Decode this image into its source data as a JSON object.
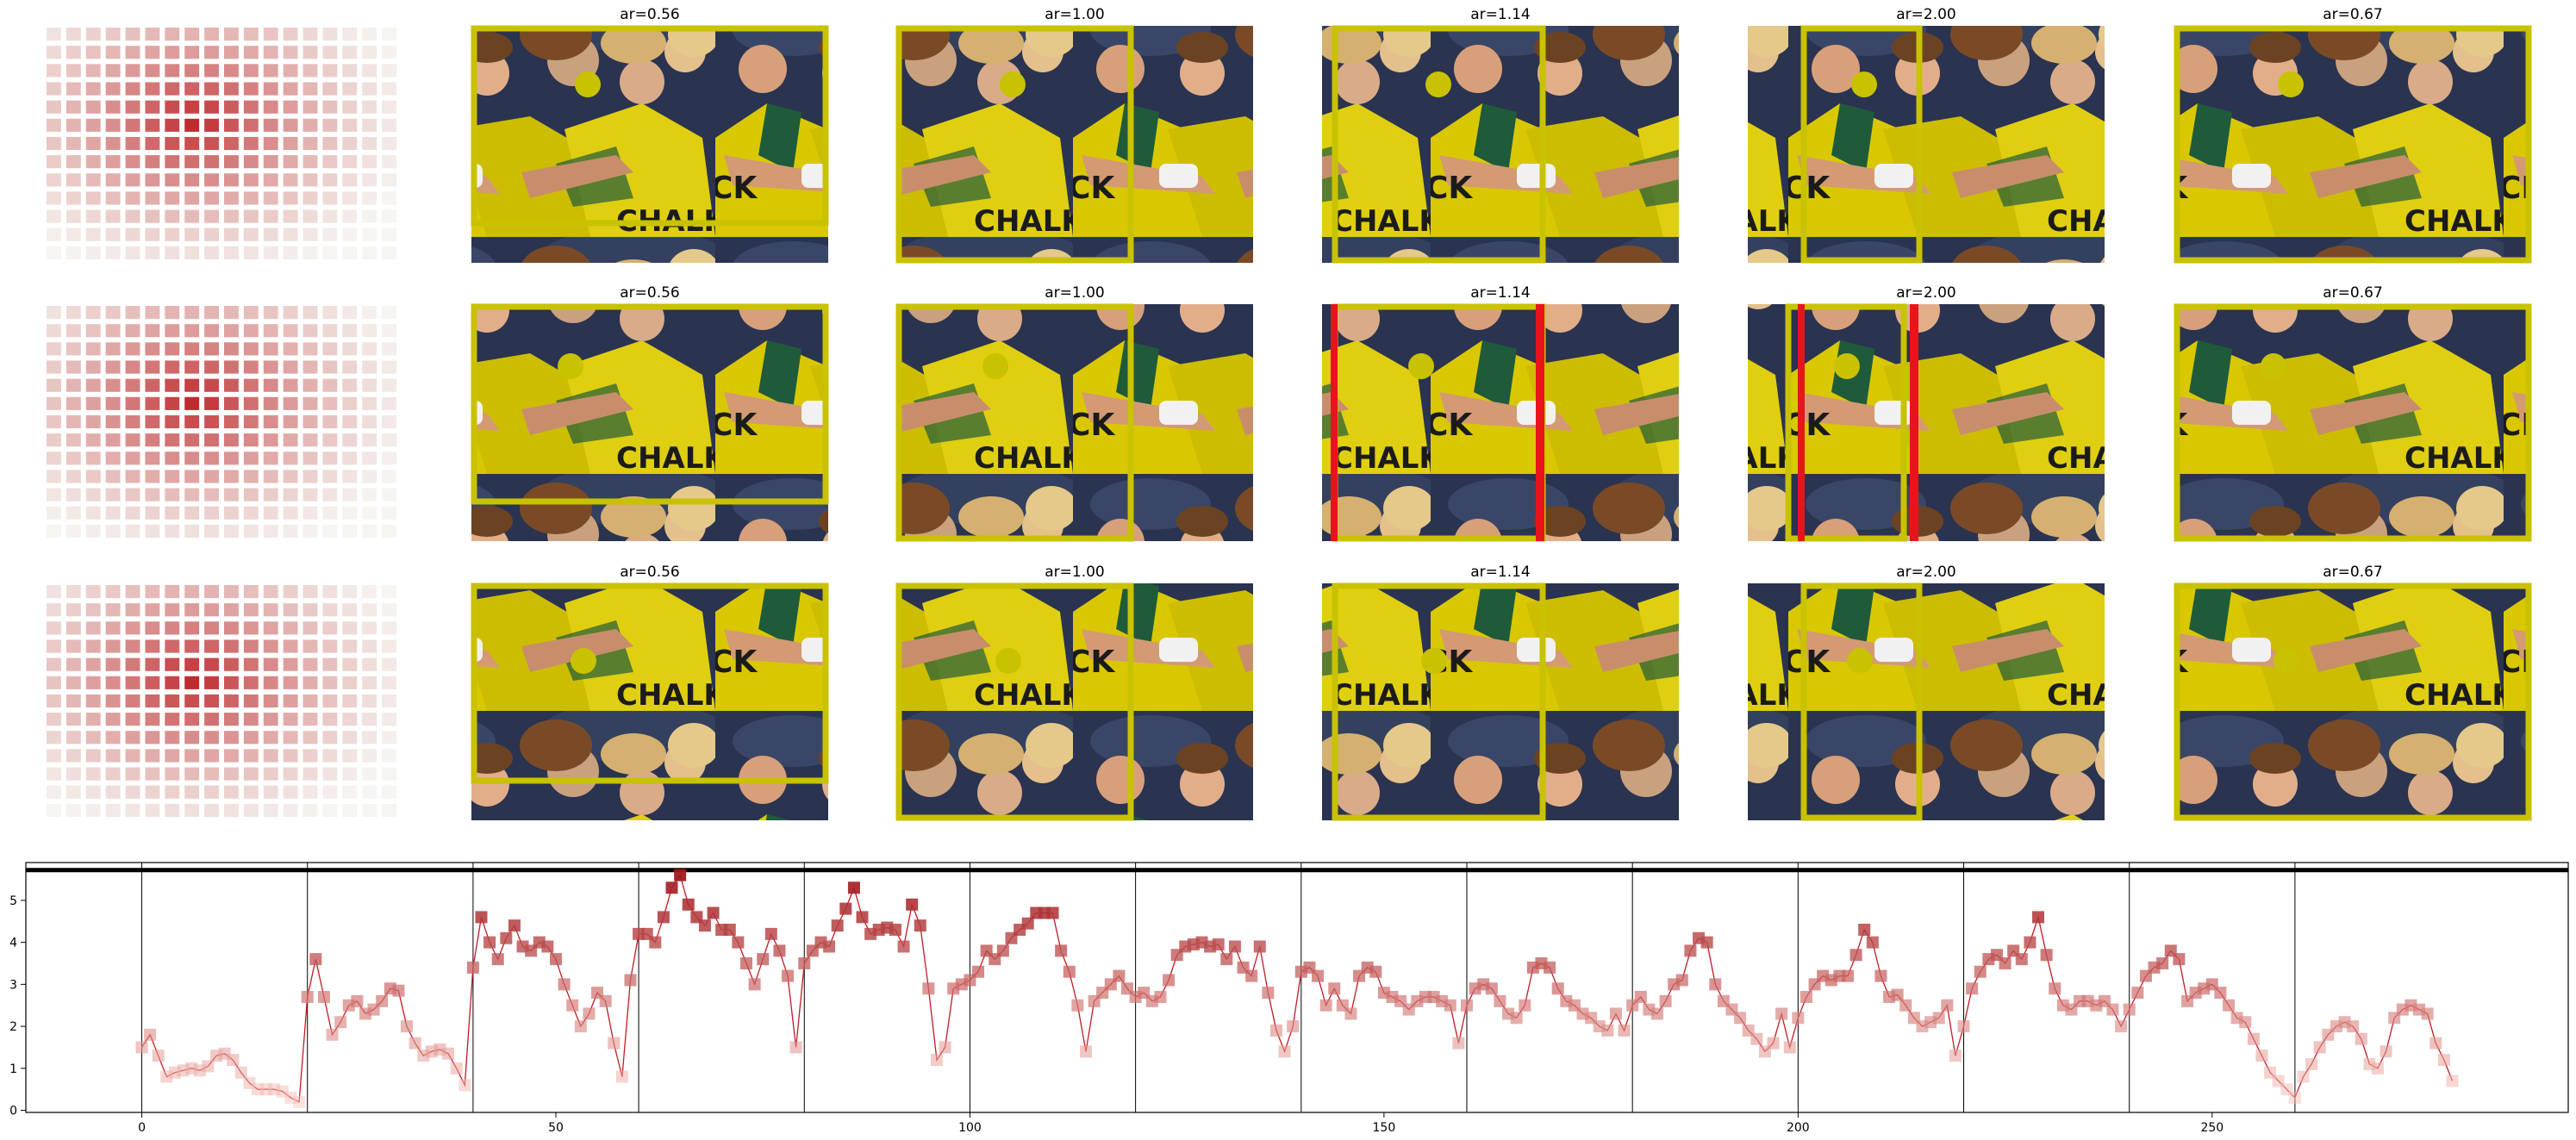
{
  "figure": {
    "grid_rows": [
      [
        "ar=0.56",
        "ar=1.00",
        "ar=1.14",
        "ar=2.00",
        "ar=0.67"
      ],
      [
        "ar=0.56",
        "ar=1.00",
        "ar=1.14",
        "ar=2.00",
        "ar=0.67"
      ],
      [
        "ar=0.56",
        "ar=1.00",
        "ar=1.14",
        "ar=2.00",
        "ar=0.67"
      ]
    ],
    "photo_text": "CHALKEP",
    "photo_text_left": "CK",
    "colors": {
      "crop_box": "#c8c200",
      "focus_dot": "#c8c200",
      "red_bar": "#e8141c",
      "line": "#c21a26",
      "photo_bg": "#2a3350",
      "jersey": "#d9c800"
    },
    "icons": [
      "heatmap-thumbnail",
      "crop-box-overlay",
      "focus-point-marker"
    ]
  },
  "chart_data": {
    "type": "line",
    "title": "",
    "xlabel": "",
    "ylabel": "",
    "xlim": [
      -14,
      293
    ],
    "ylim": [
      -0.05,
      5.9
    ],
    "xticks": [
      0,
      50,
      100,
      150,
      200,
      250
    ],
    "yticks": [
      0,
      1,
      2,
      3,
      4,
      5
    ],
    "vlines": [
      0,
      20,
      40,
      60,
      80,
      100,
      120,
      140,
      160,
      180,
      200,
      220,
      240,
      260
    ],
    "hline": 5.72,
    "grid": false,
    "legend": "none",
    "series": [
      {
        "values": [
          1.5,
          1.8,
          1.3,
          0.8,
          0.9,
          0.95,
          1.0,
          0.95,
          1.05,
          1.3,
          1.35,
          1.2,
          0.9,
          0.65,
          0.5,
          0.5,
          0.5,
          0.45,
          0.3,
          0.2,
          2.7,
          3.6,
          2.7,
          1.8,
          2.1,
          2.5,
          2.6,
          2.3,
          2.4,
          2.6,
          2.9,
          2.85,
          2.0,
          1.6,
          1.3,
          1.4,
          1.45,
          1.35,
          1.0,
          0.6,
          3.4,
          4.6,
          4.0,
          3.6,
          4.1,
          4.4,
          3.9,
          3.8,
          4.0,
          3.9,
          3.6,
          3.0,
          2.5,
          2.0,
          2.3,
          2.8,
          2.6,
          1.6,
          0.8,
          3.1,
          4.2,
          4.2,
          4.0,
          4.6,
          5.3,
          5.6,
          4.9,
          4.6,
          4.4,
          4.7,
          4.3,
          4.3,
          4.0,
          3.5,
          3.0,
          3.6,
          4.2,
          3.8,
          3.2,
          1.5,
          3.5,
          3.8,
          4.0,
          3.9,
          4.4,
          4.8,
          5.3,
          4.6,
          4.2,
          4.3,
          4.35,
          4.3,
          3.9,
          4.9,
          4.4,
          2.9,
          1.2,
          1.5,
          2.9,
          3.0,
          3.1,
          3.3,
          3.8,
          3.6,
          3.8,
          4.1,
          4.3,
          4.45,
          4.7,
          4.7,
          4.7,
          3.8,
          3.3,
          2.5,
          1.4,
          2.6,
          2.8,
          3.0,
          3.2,
          2.9,
          2.7,
          2.8,
          2.6,
          2.7,
          3.1,
          3.7,
          3.9,
          3.95,
          4.0,
          3.9,
          3.95,
          3.6,
          3.9,
          3.4,
          3.2,
          3.9,
          2.8,
          1.9,
          1.4,
          2.0,
          3.3,
          3.4,
          3.2,
          2.5,
          2.9,
          2.5,
          2.3,
          3.2,
          3.4,
          3.3,
          2.8,
          2.7,
          2.6,
          2.4,
          2.6,
          2.7,
          2.7,
          2.6,
          2.5,
          1.6,
          2.5,
          2.9,
          3.0,
          2.9,
          2.6,
          2.3,
          2.2,
          2.5,
          3.4,
          3.5,
          3.4,
          2.9,
          2.6,
          2.5,
          2.3,
          2.2,
          2.0,
          1.9,
          2.3,
          1.9,
          2.5,
          2.7,
          2.4,
          2.3,
          2.6,
          3.0,
          3.1,
          3.8,
          4.1,
          4.0,
          3.0,
          2.6,
          2.4,
          2.2,
          1.9,
          1.7,
          1.4,
          1.6,
          2.3,
          1.5,
          2.2,
          2.7,
          3.0,
          3.2,
          3.1,
          3.2,
          3.2,
          3.7,
          4.3,
          4.0,
          3.2,
          2.7,
          2.75,
          2.5,
          2.2,
          2.0,
          2.1,
          2.2,
          2.5,
          1.3,
          2.0,
          2.9,
          3.3,
          3.6,
          3.7,
          3.5,
          3.8,
          3.6,
          4.0,
          4.6,
          3.7,
          2.9,
          2.5,
          2.4,
          2.6,
          2.6,
          2.5,
          2.6,
          2.4,
          2.0,
          2.4,
          2.8,
          3.2,
          3.4,
          3.5,
          3.8,
          3.6,
          2.6,
          2.8,
          2.9,
          3.0,
          2.8,
          2.5,
          2.2,
          2.1,
          1.7,
          1.3,
          0.9,
          0.7,
          0.5,
          0.3,
          0.8,
          1.1,
          1.5,
          1.8,
          2.0,
          2.1,
          2.0,
          1.7,
          1.1,
          1.0,
          1.4,
          2.2,
          2.4,
          2.5,
          2.4,
          2.3,
          1.6,
          1.2,
          0.7
        ]
      }
    ]
  }
}
